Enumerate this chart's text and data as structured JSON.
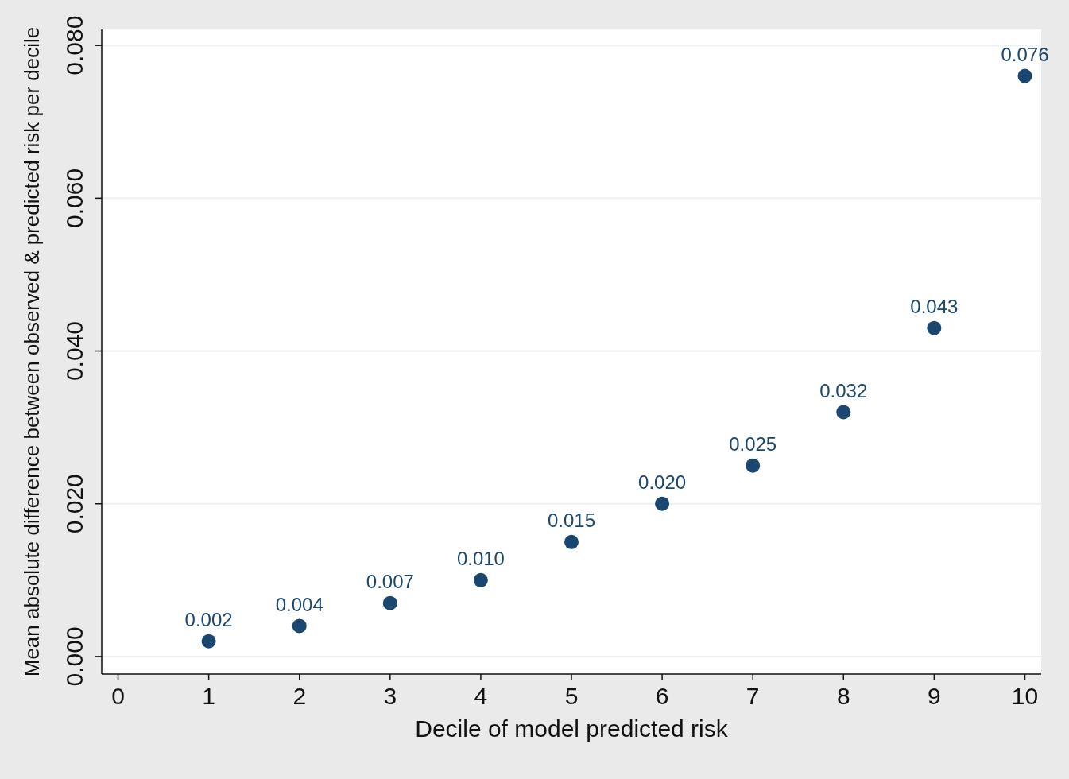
{
  "chart_data": {
    "type": "scatter",
    "xlabel": "Decile of model predicted risk",
    "ylabel": "Mean absolute difference between observed & predicted risk per decile",
    "x": [
      1,
      2,
      3,
      4,
      5,
      6,
      7,
      8,
      9,
      10
    ],
    "series": [
      {
        "color": "#1a476f",
        "values": [
          0.002,
          0.004,
          0.007,
          0.01,
          0.015,
          0.02,
          0.025,
          0.032,
          0.043,
          0.076
        ],
        "value_labels": [
          "0.002",
          "0.004",
          "0.007",
          "0.010",
          "0.015",
          "0.020",
          "0.025",
          "0.032",
          "0.043",
          "0.076"
        ]
      }
    ],
    "xlim": [
      -0.18,
      10.18
    ],
    "xticks": [
      0,
      1,
      2,
      3,
      4,
      5,
      6,
      7,
      8,
      9,
      10
    ],
    "ylim": [
      -0.0023,
      0.0821
    ],
    "yticks": [
      {
        "value": 0,
        "label": "0.000"
      },
      {
        "value": 0.02,
        "label": "0.020"
      },
      {
        "value": 0.04,
        "label": "0.040"
      },
      {
        "value": 0.06,
        "label": "0.060"
      },
      {
        "value": 0.08,
        "label": "0.080"
      }
    ],
    "grid": "y",
    "marker": "circle",
    "legend": false
  }
}
